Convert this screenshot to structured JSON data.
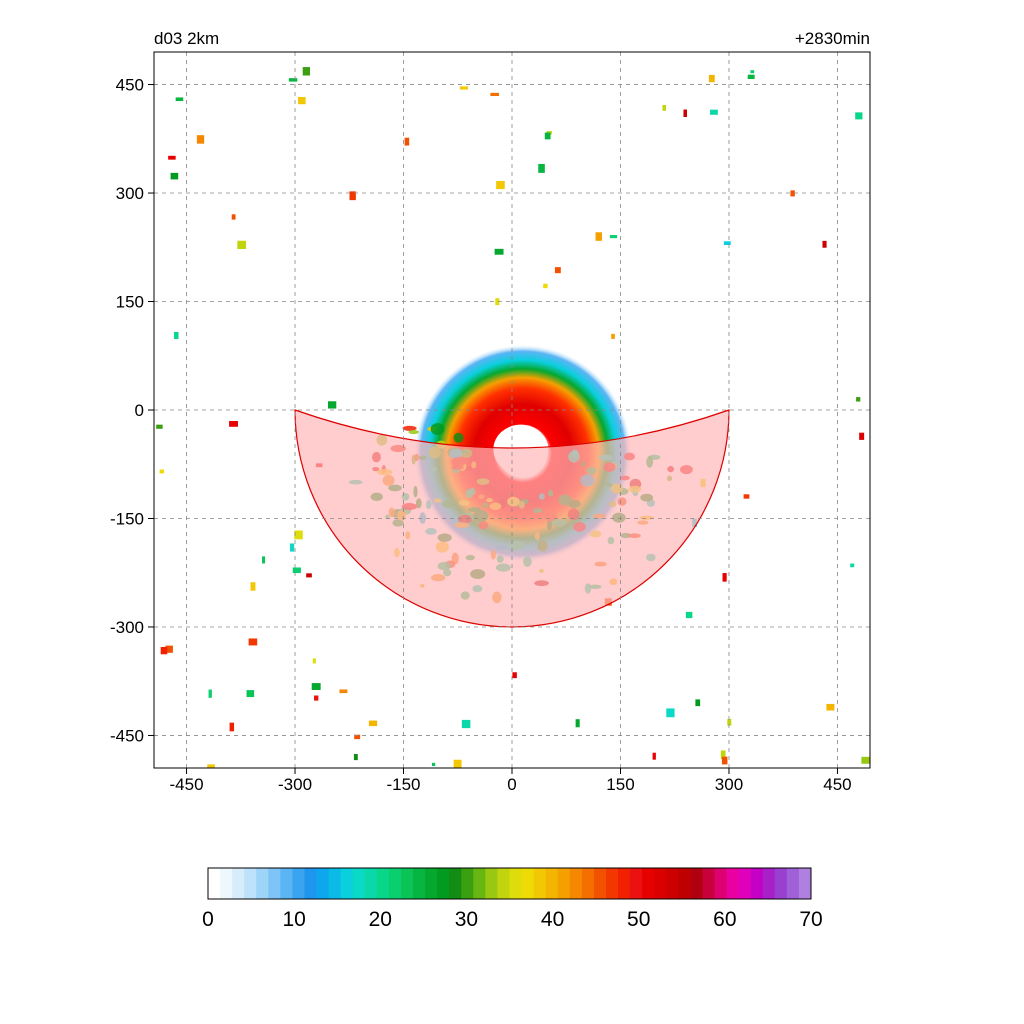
{
  "panel": {
    "left_title": "d03 2km",
    "right_title": "+2830min"
  },
  "chart_data": {
    "type": "heatmap",
    "title": "",
    "xlabel": "",
    "ylabel": "",
    "xlim": [
      -495,
      495
    ],
    "ylim": [
      -495,
      495
    ],
    "x_ticks": [
      -450,
      -300,
      -150,
      0,
      150,
      300,
      450
    ],
    "y_ticks": [
      -450,
      -300,
      -150,
      0,
      150,
      300,
      450
    ],
    "x_tick_labels": [
      "-450",
      "-300",
      "-150",
      "0",
      "150",
      "300",
      "450"
    ],
    "y_tick_labels": [
      "-450",
      "-300",
      "-150",
      "0",
      "150",
      "300",
      "450"
    ],
    "grid": true,
    "eye_center": [
      15,
      -60
    ],
    "eye_radius": 38,
    "sector": {
      "center": [
        0,
        0
      ],
      "radius": 300,
      "start_deg": 180,
      "end_deg": 360,
      "fill": "#ffb8b8",
      "stroke": "#dd0000"
    },
    "colorbar": {
      "min": 0,
      "max": 70,
      "tick_values": [
        0,
        10,
        20,
        30,
        40,
        50,
        60,
        70
      ],
      "tick_labels": [
        "0",
        "10",
        "20",
        "30",
        "40",
        "50",
        "60",
        "70"
      ],
      "colors": [
        "#ffffff",
        "#eef7fd",
        "#d8edfc",
        "#bee2fb",
        "#9fd4f9",
        "#7ec4f7",
        "#5bb4f4",
        "#3aa4f1",
        "#1e96ee",
        "#0ea6ec",
        "#0bbbe6",
        "#0acfde",
        "#0ad9c6",
        "#0ad8a8",
        "#0ad68a",
        "#0acf70",
        "#0ac458",
        "#07b640",
        "#05a82e",
        "#039a20",
        "#128c12",
        "#3aa012",
        "#68b612",
        "#98c812",
        "#c2d40e",
        "#dedc0a",
        "#eedb06",
        "#f2c804",
        "#f4b402",
        "#f5a000",
        "#f58800",
        "#f46e00",
        "#f25200",
        "#f23800",
        "#f02000",
        "#ec1010",
        "#e60000",
        "#da0000",
        "#cc0000",
        "#be0000",
        "#b00010",
        "#c8003c",
        "#dc0070",
        "#ea00a0",
        "#e000bc",
        "#c400c4",
        "#a820c8",
        "#9a40d0",
        "#a060d8",
        "#b080e0"
      ]
    },
    "dbz_fields": [
      {
        "type": "ring",
        "r": 150,
        "value": 12
      },
      {
        "type": "ring",
        "r": 120,
        "value": 22
      },
      {
        "type": "ring",
        "r": 100,
        "value": 36
      },
      {
        "type": "ring",
        "r": 82,
        "value": 46
      },
      {
        "type": "ring",
        "r": 60,
        "value": 52
      },
      {
        "type": "cells",
        "region": "outer-scatter",
        "value_range": [
          15,
          55
        ]
      }
    ]
  }
}
